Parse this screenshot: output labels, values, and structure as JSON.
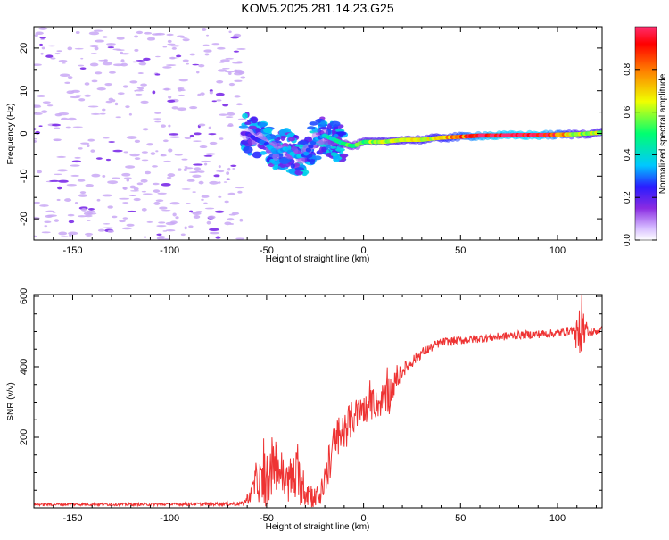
{
  "figure_title": "KOM5.2025.281.14.23.G25",
  "chart_data": [
    {
      "type": "heatmap",
      "title": "KOM5.2025.281.14.23.G25",
      "xlabel": "Height of straight line (km)",
      "ylabel": "Frequency (Hz)",
      "xlim": [
        -170,
        123
      ],
      "ylim": [
        -25,
        25
      ],
      "xticks": [
        -150,
        -100,
        -50,
        0,
        50,
        100
      ],
      "yticks": [
        -20,
        -10,
        0,
        10,
        20
      ],
      "colorbar": {
        "label": "Normalized spectral amplitude",
        "range": [
          0,
          1
        ],
        "ticks": [
          0.0,
          0.2,
          0.4,
          0.6,
          0.8
        ]
      },
      "ridge": {
        "x": [
          -60,
          -55,
          -50,
          -45,
          -40,
          -35,
          -30,
          -25,
          -20,
          -15,
          -10,
          -5,
          0,
          10,
          20,
          30,
          40,
          50,
          60,
          70,
          80,
          90,
          100,
          110,
          123
        ],
        "freq": [
          0.0,
          -1.5,
          -2.5,
          -4.5,
          -3.5,
          -5.5,
          -5.0,
          -1.5,
          -0.5,
          -1.5,
          -2.5,
          -3.0,
          -2.0,
          -2.0,
          -1.5,
          -1.5,
          -1.0,
          -0.8,
          -0.5,
          -0.5,
          -0.4,
          -0.4,
          -0.3,
          -0.2,
          0.2
        ],
        "amplitude": [
          0.2,
          0.25,
          0.3,
          0.3,
          0.35,
          0.35,
          0.3,
          0.3,
          0.35,
          0.45,
          0.5,
          0.5,
          0.55,
          0.6,
          0.6,
          0.65,
          0.7,
          0.8,
          0.95,
          1.0,
          1.0,
          1.0,
          0.85,
          0.6,
          0.6
        ]
      },
      "noise_region_km": [
        -170,
        -62
      ],
      "noise_amplitude": 0.05
    },
    {
      "type": "line",
      "xlabel": "Height of straight line (km)",
      "ylabel": "SNR (v/v)",
      "xlim": [
        -170,
        123
      ],
      "ylim": [
        0,
        605
      ],
      "xticks": [
        -150,
        -100,
        -50,
        0,
        50,
        100
      ],
      "yticks": [
        200,
        400,
        600
      ],
      "series": [
        {
          "name": "SNR",
          "color": "#ee3333",
          "x": [
            -170,
            -100,
            -62,
            -58,
            -55,
            -50,
            -45,
            -40,
            -35,
            -30,
            -25,
            -22,
            -18,
            -15,
            -10,
            -5,
            0,
            5,
            10,
            13,
            15,
            20,
            30,
            40,
            60,
            80,
            100,
            108,
            111,
            113,
            116,
            123
          ],
          "base": [
            10,
            10,
            12,
            40,
            80,
            60,
            130,
            70,
            90,
            50,
            30,
            40,
            120,
            180,
            220,
            260,
            280,
            290,
            300,
            320,
            340,
            390,
            440,
            470,
            480,
            490,
            495,
            505,
            480,
            520,
            495,
            505
          ],
          "spread": [
            4,
            4,
            6,
            25,
            60,
            60,
            80,
            60,
            80,
            50,
            30,
            30,
            60,
            60,
            60,
            50,
            40,
            40,
            40,
            60,
            40,
            20,
            15,
            12,
            12,
            12,
            12,
            12,
            70,
            60,
            12,
            10
          ]
        }
      ]
    }
  ]
}
